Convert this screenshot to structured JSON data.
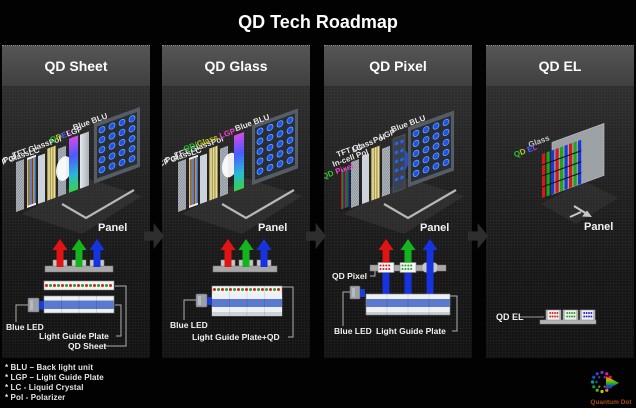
{
  "title": "QD Tech Roadmap",
  "panels": [
    {
      "header": "QD Sheet",
      "layers": {
        "pol_front": "Pol",
        "cf_glass": "CF Glass",
        "lc": "LC",
        "tft_glass": "TFT Glass",
        "pol_mid": "Pol",
        "lgp": "LGP",
        "blue_blu": "Blue BLU"
      },
      "qdef_segments": [
        {
          "t": "Q",
          "c": "#2fc42f"
        },
        {
          "t": "D",
          "c": "#c8c822"
        },
        {
          "t": "E",
          "c": "#4466ff"
        },
        {
          "t": "F",
          "c": "#cc44ee"
        }
      ],
      "panel_label": "Panel",
      "bottom": {
        "blue_led": "Blue LED",
        "lgp": "Light Guide Plate",
        "qd_sheet": "QD Sheet"
      }
    },
    {
      "header": "QD Glass",
      "layers": {
        "pol_front": "Pol",
        "cf_glass": "CF Glass",
        "lc": "LC",
        "tft_glass": "TFT Glass",
        "pol_mid": "Pol",
        "blue_blu": "Blue BLU"
      },
      "qd_lgp_segments": [
        {
          "t": "QD/",
          "c": "#2fc42f"
        },
        {
          "t": "Glass",
          "c": "#c8c822"
        },
        {
          "t": " LGP",
          "c": "#ee44cc"
        }
      ],
      "panel_label": "Panel",
      "bottom": {
        "blue_led": "Blue LED",
        "lgp_qd": "Light Guide Plate+QD"
      }
    },
    {
      "header": "QD Pixel",
      "layers": {
        "incell_pol": "In-cell Pol",
        "lc": "LC",
        "tft_glass": "TFT Glass",
        "pol": "Pol",
        "lgp": "LGP",
        "blue_blu": "Blue BLU"
      },
      "qd_pixel_segments": [
        {
          "t": "QD",
          "c": "#2fc42f"
        },
        {
          "t": " Pixel",
          "c": "#ee44cc"
        }
      ],
      "panel_label": "Panel",
      "bottom": {
        "qd_pixel": "QD Pixel",
        "blue_led": "Blue LED",
        "lgp": "Light Guide Plate"
      }
    },
    {
      "header": "QD EL",
      "layers": {
        "glass": "Glass"
      },
      "qd_el_segments": [
        {
          "t": "Q",
          "c": "#2fc42f"
        },
        {
          "t": "D",
          "c": "#b8cc22"
        },
        {
          "t": " ",
          "c": "#ffffff"
        },
        {
          "t": "E",
          "c": "#4466ff"
        },
        {
          "t": "L",
          "c": "#a044ee"
        }
      ],
      "panel_label": "Panel",
      "bottom": {
        "qd_el": "QD EL"
      }
    }
  ],
  "footnotes": [
    "* BLU – Back light unit",
    "* LGP – Light Guide Plate",
    "* LC - Liquid Crystal",
    "* Pol - Polarizer"
  ],
  "logo": {
    "text": "Quantum Dot"
  },
  "colors": {
    "arrow_red": "#e01414",
    "arrow_green": "#14b41e",
    "arrow_blue": "#1633e0",
    "lgp_blue": "#5b79cf",
    "blu_dot": "#1d53e8"
  }
}
